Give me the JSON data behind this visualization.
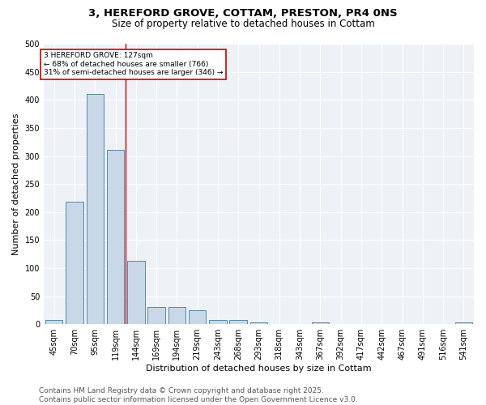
{
  "title_line1": "3, HEREFORD GROVE, COTTAM, PRESTON, PR4 0NS",
  "title_line2": "Size of property relative to detached houses in Cottam",
  "xlabel": "Distribution of detached houses by size in Cottam",
  "ylabel": "Number of detached properties",
  "bar_labels": [
    "45sqm",
    "70sqm",
    "95sqm",
    "119sqm",
    "144sqm",
    "169sqm",
    "194sqm",
    "219sqm",
    "243sqm",
    "268sqm",
    "293sqm",
    "318sqm",
    "343sqm",
    "367sqm",
    "392sqm",
    "417sqm",
    "442sqm",
    "467sqm",
    "491sqm",
    "516sqm",
    "541sqm"
  ],
  "bar_values": [
    8,
    219,
    411,
    311,
    113,
    31,
    31,
    25,
    8,
    8,
    3,
    0,
    0,
    3,
    0,
    0,
    0,
    0,
    0,
    0,
    3
  ],
  "bar_color": "#c8d8e8",
  "bar_edge_color": "#5588aa",
  "vline_x": 3.5,
  "vline_color": "#cc0000",
  "annotation_text": "3 HEREFORD GROVE: 127sqm\n← 68% of detached houses are smaller (766)\n31% of semi-detached houses are larger (346) →",
  "annotation_box_color": "#ffffff",
  "annotation_box_edge": "#cc0000",
  "ylim": [
    0,
    500
  ],
  "yticks": [
    0,
    50,
    100,
    150,
    200,
    250,
    300,
    350,
    400,
    450,
    500
  ],
  "background_color": "#eef2f7",
  "footer_line1": "Contains HM Land Registry data © Crown copyright and database right 2025.",
  "footer_line2": "Contains public sector information licensed under the Open Government Licence v3.0.",
  "title_fontsize": 9.5,
  "subtitle_fontsize": 8.5,
  "axis_label_fontsize": 8,
  "tick_fontsize": 7,
  "footer_fontsize": 6.5
}
